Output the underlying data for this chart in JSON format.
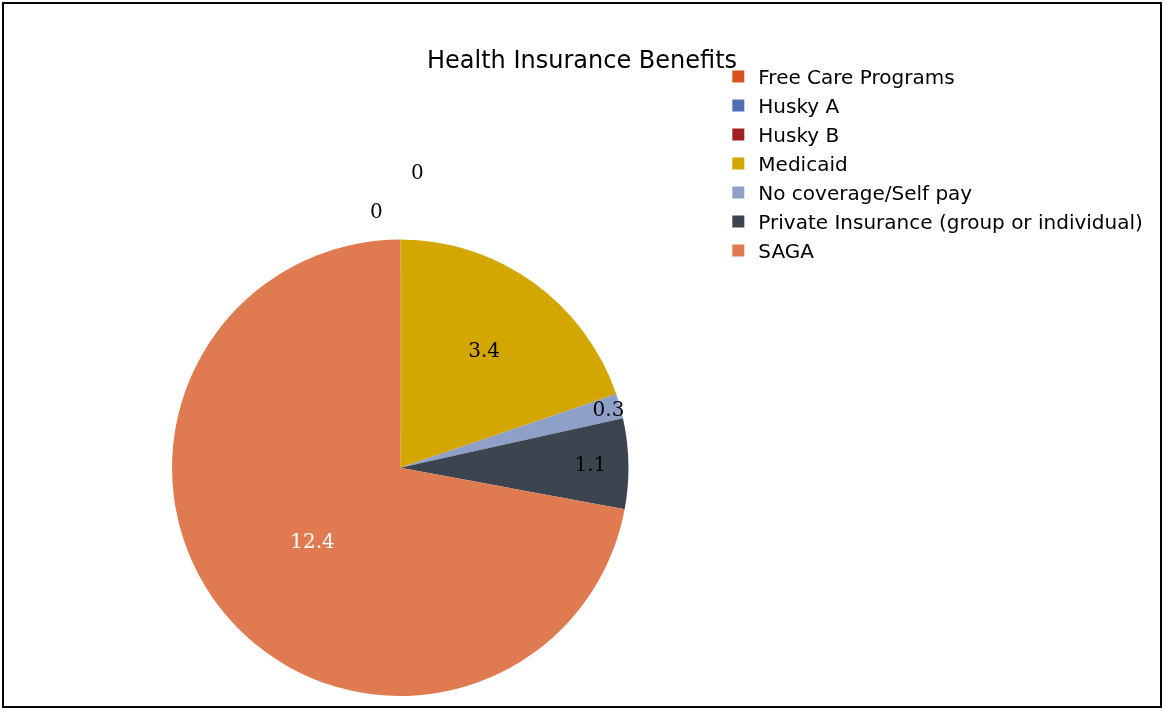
{
  "chart_data": {
    "type": "pie",
    "title": "Health Insurance Benefits",
    "categories": [
      "Free Care Programs",
      "Husky A",
      "Husky B",
      "Medicaid",
      "No coverage/Self pay",
      "Private Insurance (group or individual)",
      "SAGA"
    ],
    "values": [
      0,
      0,
      0,
      3.4,
      0.3,
      1.1,
      12.4
    ],
    "value_labels": [
      "0",
      "0",
      null,
      "3.4",
      "0.3",
      "1.1",
      "12.4"
    ],
    "colors": [
      "#d9531e",
      "#4f6fb5",
      "#a02020",
      "#d4a600",
      "#8fa0c8",
      "#3c4450",
      "#e07a50"
    ],
    "legend": "right"
  }
}
